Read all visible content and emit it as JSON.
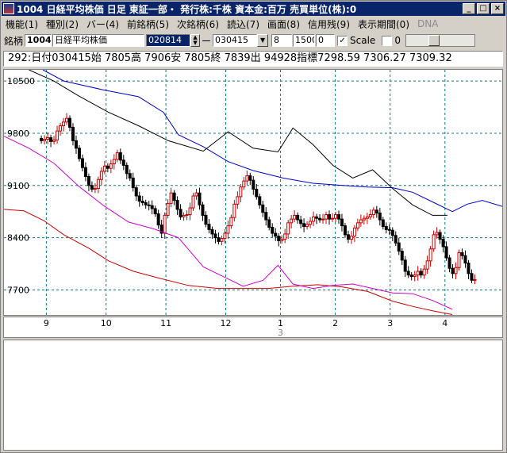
{
  "window": {
    "title": "1004 日経平均株価  日足  東証一部・  発行株:千株  資本金:百万  売買単位(株):0",
    "controls": [
      "_",
      "□",
      "×"
    ]
  },
  "menu": [
    "機能(1)",
    "種別(2)",
    "バー(4)",
    "前銘柄(5)",
    "次銘柄(6)",
    "読込(7)",
    "画面(8)",
    "信用残(9)",
    "表示期間(0)",
    "DNA"
  ],
  "toolbar": {
    "label": "銘柄",
    "code": "1004",
    "name": "日経平均株価",
    "from_date": "020814",
    "dash": "ー",
    "to_date": "030415",
    "field_8": "8",
    "field_1500": "1500",
    "field_0": "0",
    "scale_checked": "✓",
    "scale_label": "Scale",
    "count": "0"
  },
  "info": "292:日付030415始 7805高 7906安 7805終 7839出 94928指標7298.59  7306.27  7309.32",
  "chart_data": {
    "type": "candlestick",
    "yticks": [
      10500,
      9800,
      9100,
      8400,
      7700
    ],
    "ylim": [
      7365,
      10650
    ],
    "months": [
      {
        "label": "9",
        "x": 0.085
      },
      {
        "label": "10",
        "x": 0.205
      },
      {
        "label": "11",
        "x": 0.325
      },
      {
        "label": "12",
        "x": 0.445
      },
      {
        "label": "1",
        "x": 0.555
      },
      {
        "label": "2",
        "x": 0.665
      },
      {
        "label": "3",
        "x": 0.775
      },
      {
        "label": "4",
        "x": 0.885
      }
    ],
    "year_marker": {
      "label": "3",
      "x": 0.555
    },
    "closes": [
      9700,
      9720,
      9740,
      9690,
      9710,
      9830,
      9900,
      9950,
      10000,
      9880,
      9700,
      9600,
      9460,
      9340,
      9220,
      9100,
      9050,
      9060,
      9180,
      9290,
      9360,
      9330,
      9390,
      9450,
      9540,
      9440,
      9370,
      9260,
      9200,
      9070,
      8960,
      8890,
      8870,
      8840,
      8830,
      8790,
      8720,
      8570,
      8460,
      8700,
      8860,
      9000,
      8900,
      8780,
      8680,
      8700,
      8710,
      8800,
      8960,
      9000,
      8840,
      8700,
      8580,
      8510,
      8450,
      8400,
      8350,
      8390,
      8460,
      8560,
      8670,
      8850,
      8950,
      9080,
      9160,
      9230,
      9170,
      9050,
      8950,
      8840,
      8740,
      8640,
      8540,
      8460,
      8420,
      8360,
      8380,
      8450,
      8600,
      8650,
      8700,
      8640,
      8590,
      8550,
      8580,
      8620,
      8680,
      8660,
      8640,
      8650,
      8710,
      8650,
      8660,
      8710,
      8650,
      8560,
      8440,
      8380,
      8420,
      8530,
      8600,
      8640,
      8660,
      8680,
      8710,
      8770,
      8730,
      8640,
      8550,
      8510,
      8500,
      8430,
      8330,
      8220,
      8100,
      7950,
      7900,
      7880,
      7900,
      7950,
      7900,
      7980,
      8090,
      8250,
      8440,
      8470,
      8380,
      8280,
      8130,
      7990,
      7920,
      8000,
      8200,
      8160,
      8060,
      7920,
      7830,
      7839
    ],
    "series": [
      {
        "name": "blue",
        "color": "#0000cc",
        "values": [
          [
            0.078,
            10650
          ],
          [
            0.12,
            10500
          ],
          [
            0.2,
            10380
          ],
          [
            0.27,
            10290
          ],
          [
            0.32,
            10080
          ],
          [
            0.35,
            9780
          ],
          [
            0.4,
            9620
          ],
          [
            0.45,
            9420
          ],
          [
            0.5,
            9300
          ],
          [
            0.56,
            9200
          ],
          [
            0.62,
            9130
          ],
          [
            0.68,
            9100
          ],
          [
            0.73,
            9080
          ],
          [
            0.78,
            9070
          ],
          [
            0.82,
            9010
          ],
          [
            0.86,
            8880
          ],
          [
            0.9,
            8750
          ],
          [
            0.93,
            8850
          ],
          [
            0.96,
            8900
          ],
          [
            1.0,
            8820
          ]
        ]
      },
      {
        "name": "black",
        "color": "#000000",
        "values": [
          [
            0.05,
            10650
          ],
          [
            0.1,
            10500
          ],
          [
            0.15,
            10300
          ],
          [
            0.21,
            10080
          ],
          [
            0.27,
            9900
          ],
          [
            0.33,
            9700
          ],
          [
            0.4,
            9560
          ],
          [
            0.45,
            9820
          ],
          [
            0.5,
            9600
          ],
          [
            0.55,
            9550
          ],
          [
            0.58,
            9870
          ],
          [
            0.62,
            9650
          ],
          [
            0.66,
            9370
          ],
          [
            0.7,
            9200
          ],
          [
            0.74,
            9310
          ],
          [
            0.78,
            9060
          ],
          [
            0.82,
            8840
          ],
          [
            0.86,
            8700
          ],
          [
            0.89,
            8700
          ]
        ]
      },
      {
        "name": "red",
        "color": "#cc0000",
        "values": [
          [
            0.0,
            8780
          ],
          [
            0.04,
            8760
          ],
          [
            0.08,
            8630
          ],
          [
            0.12,
            8440
          ],
          [
            0.17,
            8260
          ],
          [
            0.21,
            8090
          ],
          [
            0.26,
            7950
          ],
          [
            0.31,
            7860
          ],
          [
            0.37,
            7760
          ],
          [
            0.43,
            7720
          ],
          [
            0.48,
            7720
          ],
          [
            0.53,
            7720
          ],
          [
            0.58,
            7750
          ],
          [
            0.63,
            7770
          ],
          [
            0.68,
            7740
          ],
          [
            0.73,
            7680
          ],
          [
            0.78,
            7550
          ],
          [
            0.82,
            7480
          ],
          [
            0.86,
            7420
          ],
          [
            0.9,
            7370
          ]
        ]
      },
      {
        "name": "magenta",
        "color": "#cc00cc",
        "values": [
          [
            0.0,
            9760
          ],
          [
            0.05,
            9600
          ],
          [
            0.1,
            9400
          ],
          [
            0.15,
            9090
          ],
          [
            0.2,
            8830
          ],
          [
            0.25,
            8610
          ],
          [
            0.3,
            8520
          ],
          [
            0.35,
            8400
          ],
          [
            0.4,
            8010
          ],
          [
            0.44,
            7880
          ],
          [
            0.48,
            7750
          ],
          [
            0.52,
            7830
          ],
          [
            0.55,
            8030
          ],
          [
            0.58,
            7780
          ],
          [
            0.62,
            7720
          ],
          [
            0.66,
            7760
          ],
          [
            0.7,
            7780
          ],
          [
            0.74,
            7720
          ],
          [
            0.78,
            7660
          ],
          [
            0.82,
            7650
          ],
          [
            0.86,
            7560
          ],
          [
            0.9,
            7440
          ]
        ]
      }
    ]
  }
}
